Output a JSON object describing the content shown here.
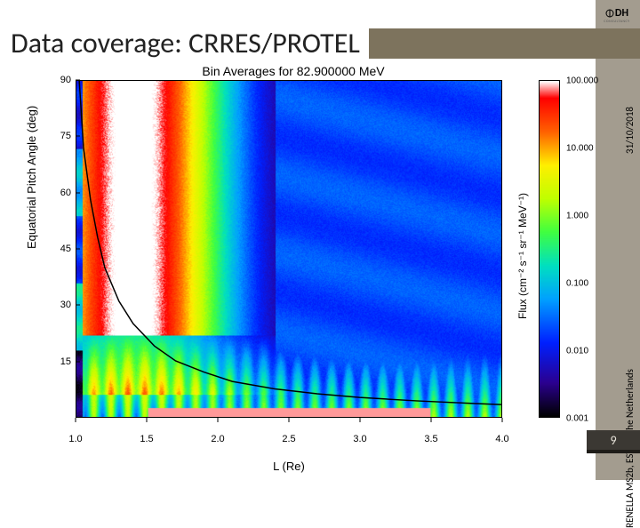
{
  "logo": {
    "initials": "DH",
    "subtitle": "CONSULTANCY"
  },
  "slide": {
    "title": "Data coverage: CRRES/PROTEL",
    "date": "31/10/2018",
    "location": "RENELLA MS2b, ESTEC, The Netherlands",
    "page_number": "9"
  },
  "chart": {
    "type": "heatmap",
    "title": "Bin Averages for 82.900000 MeV",
    "xlabel": "L (Re)",
    "ylabel": "Equatorial Pitch Angle (deg)",
    "cblabel": "Flux (cm⁻² s⁻¹ sr⁻¹ MeV⁻¹)",
    "xlim": [
      1.0,
      4.0
    ],
    "ylim": [
      0,
      90
    ],
    "xticks": [
      1.0,
      1.5,
      2.0,
      2.5,
      3.0,
      3.5,
      4.0
    ],
    "yticks": [
      15,
      30,
      45,
      60,
      75,
      90
    ],
    "cb_scale": "log",
    "cb_lim": [
      0.001,
      100.0
    ],
    "cb_ticks": [
      {
        "value": 100.0,
        "label": "100.000"
      },
      {
        "value": 10.0,
        "label": "10.000"
      },
      {
        "value": 1.0,
        "label": "1.000"
      },
      {
        "value": 0.1,
        "label": "0.100"
      },
      {
        "value": 0.01,
        "label": "0.010"
      },
      {
        "value": 0.001,
        "label": "0.001"
      }
    ],
    "colormap": [
      {
        "t": 0.0,
        "c": "#000000"
      },
      {
        "t": 0.1,
        "c": "#2b008f"
      },
      {
        "t": 0.22,
        "c": "#0020ff"
      },
      {
        "t": 0.35,
        "c": "#00a0ff"
      },
      {
        "t": 0.45,
        "c": "#00e0c0"
      },
      {
        "t": 0.55,
        "c": "#40ff40"
      },
      {
        "t": 0.65,
        "c": "#c0ff00"
      },
      {
        "t": 0.75,
        "c": "#ffef00"
      },
      {
        "t": 0.85,
        "c": "#ff6000"
      },
      {
        "t": 0.95,
        "c": "#ff0000"
      },
      {
        "t": 1.0,
        "c": "#ffffff"
      }
    ],
    "curve": {
      "color": "#000000",
      "width": 1.5,
      "points": [
        [
          1.02,
          90
        ],
        [
          1.05,
          72
        ],
        [
          1.1,
          58
        ],
        [
          1.15,
          48
        ],
        [
          1.2,
          40
        ],
        [
          1.3,
          31
        ],
        [
          1.4,
          25
        ],
        [
          1.55,
          19
        ],
        [
          1.7,
          15
        ],
        [
          1.9,
          12
        ],
        [
          2.1,
          9.5
        ],
        [
          2.4,
          7.5
        ],
        [
          2.7,
          6.2
        ],
        [
          3.0,
          5.2
        ],
        [
          3.4,
          4.3
        ],
        [
          3.8,
          3.6
        ],
        [
          4.0,
          3.3
        ]
      ]
    },
    "heatmap_model": {
      "nx": 120,
      "ny": 90,
      "band_L_max": 1.04,
      "band_stripes": [
        0.02,
        0.65,
        0.3,
        0.55,
        0.25
      ],
      "core": {
        "peak_L": 1.4,
        "sigma_L": 0.5,
        "peak_A": 55,
        "sigma_A": 300,
        "amp": 1.05
      },
      "lowA_ripples": {
        "period_L": 0.12,
        "amp": 0.18,
        "A_max": 22
      },
      "floor": 0.22,
      "right_floor": 0.26,
      "noise": 0.04
    },
    "background_color": "#ffffff",
    "axis_color": "#000000",
    "tick_fontsize": 11,
    "label_fontsize": 13,
    "title_fontsize": 14
  }
}
